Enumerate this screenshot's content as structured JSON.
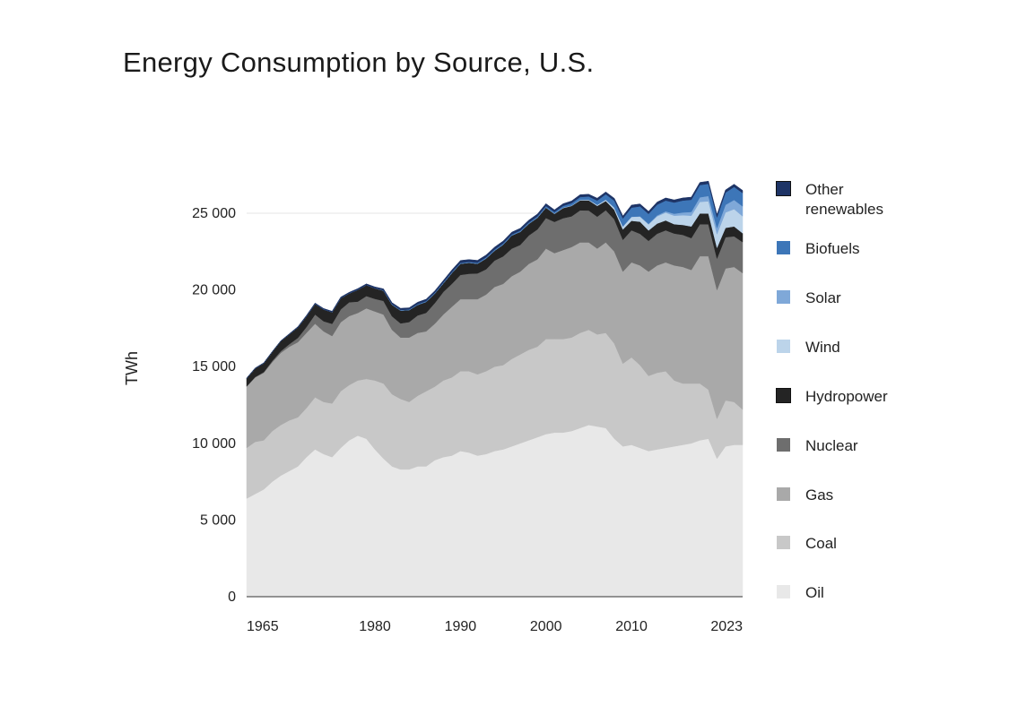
{
  "chart_data": {
    "type": "area",
    "stacked": true,
    "title": "Energy Consumption by Source, U.S.",
    "ylabel": "TWh",
    "xlabel": "",
    "xlim": [
      1965,
      2023
    ],
    "ylim": [
      0,
      28000
    ],
    "y_ticks": [
      0,
      5000,
      10000,
      15000,
      20000,
      25000
    ],
    "y_tick_labels": [
      "0",
      "5 000",
      "10 000",
      "15 000",
      "20 000",
      "25 000"
    ],
    "x_ticks": [
      1965,
      1980,
      1990,
      2000,
      2010,
      2023
    ],
    "x_tick_labels": [
      "1965",
      "1980",
      "1990",
      "2000",
      "2010",
      "2023"
    ],
    "years": [
      1965,
      1966,
      1967,
      1968,
      1969,
      1970,
      1971,
      1972,
      1973,
      1974,
      1975,
      1976,
      1977,
      1978,
      1979,
      1980,
      1981,
      1982,
      1983,
      1984,
      1985,
      1986,
      1987,
      1988,
      1989,
      1990,
      1991,
      1992,
      1993,
      1994,
      1995,
      1996,
      1997,
      1998,
      1999,
      2000,
      2001,
      2002,
      2003,
      2004,
      2005,
      2006,
      2007,
      2008,
      2009,
      2010,
      2011,
      2012,
      2013,
      2014,
      2015,
      2016,
      2017,
      2018,
      2019,
      2020,
      2021,
      2022,
      2023
    ],
    "series": [
      {
        "name": "Oil",
        "color": "#e8e8e8",
        "values": [
          6400,
          6700,
          7000,
          7500,
          7900,
          8200,
          8500,
          9100,
          9600,
          9300,
          9100,
          9700,
          10200,
          10500,
          10300,
          9600,
          9000,
          8500,
          8300,
          8300,
          8500,
          8500,
          8900,
          9100,
          9200,
          9500,
          9400,
          9200,
          9300,
          9500,
          9600,
          9800,
          10000,
          10200,
          10400,
          10600,
          10700,
          10700,
          10800,
          11000,
          11200,
          11100,
          11000,
          10300,
          9800,
          9900,
          9700,
          9500,
          9600,
          9700,
          9800,
          9900,
          10000,
          10200,
          10300,
          9000,
          9800,
          9900,
          9900
        ]
      },
      {
        "name": "Coal",
        "color": "#c8c8c8",
        "values": [
          3300,
          3400,
          3200,
          3300,
          3300,
          3300,
          3200,
          3200,
          3400,
          3400,
          3500,
          3700,
          3600,
          3600,
          3900,
          4500,
          4900,
          4700,
          4600,
          4400,
          4600,
          4900,
          4800,
          5000,
          5100,
          5200,
          5300,
          5300,
          5400,
          5500,
          5500,
          5700,
          5800,
          5900,
          5900,
          6200,
          6100,
          6100,
          6100,
          6200,
          6200,
          6000,
          6200,
          6200,
          5400,
          5700,
          5400,
          4900,
          5000,
          5000,
          4300,
          4000,
          3900,
          3700,
          3200,
          2600,
          3000,
          2800,
          2300
        ]
      },
      {
        "name": "Gas",
        "color": "#a9a9a9",
        "values": [
          4000,
          4200,
          4400,
          4500,
          4700,
          4800,
          4900,
          4900,
          4800,
          4600,
          4400,
          4500,
          4500,
          4400,
          4600,
          4500,
          4500,
          4200,
          4000,
          4200,
          4100,
          3900,
          4100,
          4300,
          4600,
          4700,
          4700,
          4900,
          5000,
          5200,
          5300,
          5400,
          5400,
          5600,
          5700,
          5900,
          5600,
          5800,
          5900,
          5900,
          5700,
          5600,
          5900,
          6000,
          6000,
          6200,
          6500,
          6800,
          7000,
          7100,
          7500,
          7600,
          7400,
          8300,
          8700,
          8400,
          8600,
          8800,
          8900
        ]
      },
      {
        "name": "Nuclear",
        "color": "#6e6e6e",
        "values": [
          20,
          30,
          50,
          80,
          110,
          170,
          280,
          390,
          600,
          660,
          790,
          830,
          900,
          740,
          800,
          820,
          890,
          880,
          920,
          1010,
          1140,
          1210,
          1350,
          1470,
          1500,
          1580,
          1660,
          1680,
          1650,
          1720,
          1790,
          1800,
          1740,
          1850,
          1950,
          1990,
          2040,
          2080,
          2000,
          2090,
          2080,
          2080,
          2100,
          2100,
          2070,
          2090,
          2060,
          2000,
          2070,
          2090,
          2080,
          2090,
          2080,
          2090,
          2090,
          2050,
          2040,
          2000,
          2020
        ]
      },
      {
        "name": "Hydropower",
        "color": "#242424",
        "values": [
          520,
          560,
          580,
          590,
          660,
          650,
          690,
          700,
          690,
          770,
          760,
          730,
          580,
          770,
          720,
          690,
          670,
          760,
          840,
          780,
          690,
          720,
          620,
          560,
          700,
          730,
          710,
          630,
          700,
          640,
          760,
          850,
          850,
          760,
          750,
          680,
          520,
          660,
          680,
          650,
          660,
          700,
          600,
          620,
          670,
          620,
          790,
          680,
          660,
          640,
          610,
          650,
          760,
          700,
          690,
          700,
          610,
          640,
          580
        ]
      },
      {
        "name": "Wind",
        "color": "#bcd4ea",
        "values": [
          0,
          0,
          0,
          0,
          0,
          0,
          0,
          0,
          0,
          0,
          0,
          0,
          0,
          0,
          0,
          0,
          0,
          0,
          0,
          0,
          0,
          0,
          0,
          10,
          10,
          10,
          10,
          10,
          10,
          10,
          10,
          10,
          10,
          10,
          15,
          15,
          20,
          30,
          30,
          40,
          50,
          70,
          90,
          150,
          200,
          260,
          330,
          390,
          470,
          510,
          550,
          630,
          700,
          750,
          800,
          890,
          1000,
          1130,
          1100
        ]
      },
      {
        "name": "Solar",
        "color": "#7fa8d8",
        "values": [
          0,
          0,
          0,
          0,
          0,
          0,
          0,
          0,
          0,
          0,
          0,
          0,
          0,
          0,
          0,
          0,
          0,
          0,
          0,
          0,
          0,
          0,
          0,
          0,
          0,
          0,
          0,
          0,
          0,
          0,
          0,
          0,
          0,
          0,
          0,
          0,
          0,
          0,
          0,
          0,
          0,
          0,
          0,
          0,
          0,
          0,
          20,
          40,
          60,
          90,
          130,
          180,
          250,
          300,
          350,
          400,
          500,
          600,
          650
        ]
      },
      {
        "name": "Biofuels",
        "color": "#3d76b8",
        "values": [
          0,
          0,
          0,
          0,
          0,
          0,
          0,
          0,
          0,
          0,
          0,
          0,
          0,
          0,
          0,
          0,
          20,
          30,
          40,
          40,
          50,
          50,
          50,
          50,
          50,
          50,
          50,
          60,
          70,
          70,
          80,
          60,
          70,
          80,
          80,
          90,
          100,
          110,
          150,
          180,
          200,
          280,
          350,
          450,
          520,
          600,
          650,
          650,
          700,
          700,
          730,
          780,
          790,
          800,
          790,
          700,
          800,
          850,
          870
        ]
      },
      {
        "name": "Other renewables",
        "color": "#1e3466",
        "values": [
          20,
          20,
          20,
          20,
          20,
          30,
          40,
          50,
          60,
          60,
          60,
          70,
          70,
          80,
          80,
          90,
          90,
          100,
          100,
          110,
          120,
          120,
          120,
          130,
          140,
          150,
          150,
          150,
          150,
          150,
          150,
          150,
          150,
          150,
          150,
          150,
          140,
          140,
          140,
          150,
          150,
          150,
          150,
          150,
          160,
          160,
          160,
          160,
          170,
          170,
          170,
          170,
          170,
          170,
          170,
          170,
          170,
          170,
          170
        ]
      }
    ]
  }
}
